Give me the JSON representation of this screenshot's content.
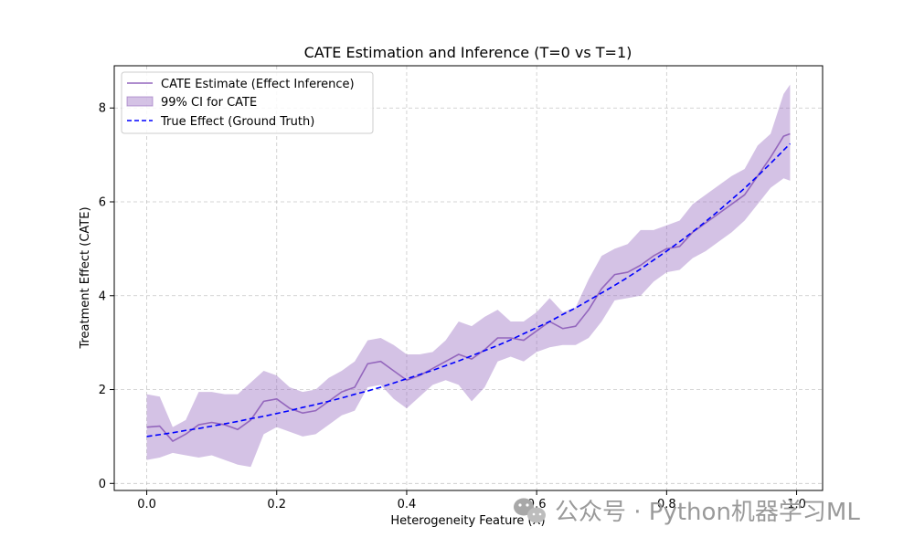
{
  "chart_data": {
    "type": "line",
    "title": "CATE Estimation and Inference (T=0 vs T=1)",
    "xlabel": "Heterogeneity Feature (X)",
    "ylabel": "Treatment Effect (CATE)",
    "xlim": [
      -0.05,
      1.04
    ],
    "ylim": [
      -0.15,
      8.9
    ],
    "xticks": [
      0.0,
      0.2,
      0.4,
      0.6,
      0.8,
      1.0
    ],
    "xtick_labels": [
      "0.0",
      "0.2",
      "0.4",
      "0.6",
      "0.8",
      "1.0"
    ],
    "yticks": [
      0,
      2,
      4,
      6,
      8
    ],
    "ytick_labels": [
      "0",
      "2",
      "4",
      "6",
      "8"
    ],
    "grid": true,
    "legend_position": "top-left",
    "x": [
      0.0,
      0.02,
      0.04,
      0.06,
      0.08,
      0.1,
      0.12,
      0.14,
      0.16,
      0.18,
      0.2,
      0.22,
      0.24,
      0.26,
      0.28,
      0.3,
      0.32,
      0.34,
      0.36,
      0.38,
      0.4,
      0.42,
      0.44,
      0.46,
      0.48,
      0.5,
      0.52,
      0.54,
      0.56,
      0.58,
      0.6,
      0.62,
      0.64,
      0.66,
      0.68,
      0.7,
      0.72,
      0.74,
      0.76,
      0.78,
      0.8,
      0.82,
      0.84,
      0.86,
      0.88,
      0.9,
      0.92,
      0.94,
      0.96,
      0.98,
      0.99
    ],
    "series": [
      {
        "name": "CATE Estimate (Effect Inference)",
        "style": "solid",
        "color": "#9467bd",
        "values": [
          1.2,
          1.22,
          0.9,
          1.05,
          1.25,
          1.3,
          1.25,
          1.15,
          1.35,
          1.75,
          1.8,
          1.6,
          1.5,
          1.55,
          1.75,
          1.95,
          2.05,
          2.55,
          2.6,
          2.4,
          2.2,
          2.3,
          2.45,
          2.6,
          2.75,
          2.65,
          2.85,
          3.1,
          3.1,
          3.05,
          3.25,
          3.45,
          3.3,
          3.35,
          3.7,
          4.15,
          4.45,
          4.5,
          4.65,
          4.85,
          5.0,
          5.05,
          5.35,
          5.55,
          5.75,
          5.95,
          6.15,
          6.55,
          6.95,
          7.4,
          7.45
        ]
      },
      {
        "name": "True Effect (Ground Truth)",
        "style": "dashed",
        "color": "#0000ff",
        "values": [
          1.0,
          1.04,
          1.08,
          1.13,
          1.17,
          1.22,
          1.27,
          1.32,
          1.38,
          1.43,
          1.49,
          1.55,
          1.62,
          1.68,
          1.75,
          1.82,
          1.9,
          1.97,
          2.05,
          2.14,
          2.23,
          2.32,
          2.41,
          2.51,
          2.61,
          2.72,
          2.83,
          2.94,
          3.06,
          3.19,
          3.32,
          3.45,
          3.6,
          3.74,
          3.9,
          4.06,
          4.22,
          4.39,
          4.57,
          4.76,
          4.95,
          5.15,
          5.36,
          5.58,
          5.81,
          6.05,
          6.29,
          6.55,
          6.82,
          7.1,
          7.24
        ]
      }
    ],
    "band": {
      "name": "99% CI for CATE",
      "color": "#9467bd",
      "opacity": 0.4,
      "upper": [
        1.9,
        1.85,
        1.2,
        1.35,
        1.95,
        1.95,
        1.9,
        1.9,
        2.15,
        2.4,
        2.3,
        2.05,
        1.95,
        2.0,
        2.25,
        2.4,
        2.6,
        3.05,
        3.1,
        2.95,
        2.75,
        2.75,
        2.8,
        3.05,
        3.45,
        3.35,
        3.55,
        3.7,
        3.45,
        3.45,
        3.65,
        3.95,
        3.65,
        3.75,
        4.35,
        4.85,
        5.0,
        5.1,
        5.4,
        5.4,
        5.5,
        5.6,
        5.95,
        6.15,
        6.35,
        6.55,
        6.7,
        7.2,
        7.45,
        8.3,
        8.5
      ],
      "lower": [
        0.5,
        0.55,
        0.65,
        0.6,
        0.55,
        0.6,
        0.5,
        0.4,
        0.35,
        1.05,
        1.2,
        1.1,
        1.0,
        1.05,
        1.25,
        1.45,
        1.55,
        2.05,
        2.1,
        1.8,
        1.6,
        1.85,
        2.1,
        2.2,
        2.1,
        1.75,
        2.05,
        2.6,
        2.7,
        2.6,
        2.8,
        2.9,
        2.95,
        2.95,
        3.1,
        3.45,
        3.9,
        3.95,
        4.0,
        4.3,
        4.5,
        4.55,
        4.8,
        4.95,
        5.15,
        5.35,
        5.6,
        5.95,
        6.3,
        6.5,
        6.45
      ]
    }
  },
  "watermark": {
    "text": "公众号 · Python机器学习ML",
    "icon": "wechat-icon"
  }
}
